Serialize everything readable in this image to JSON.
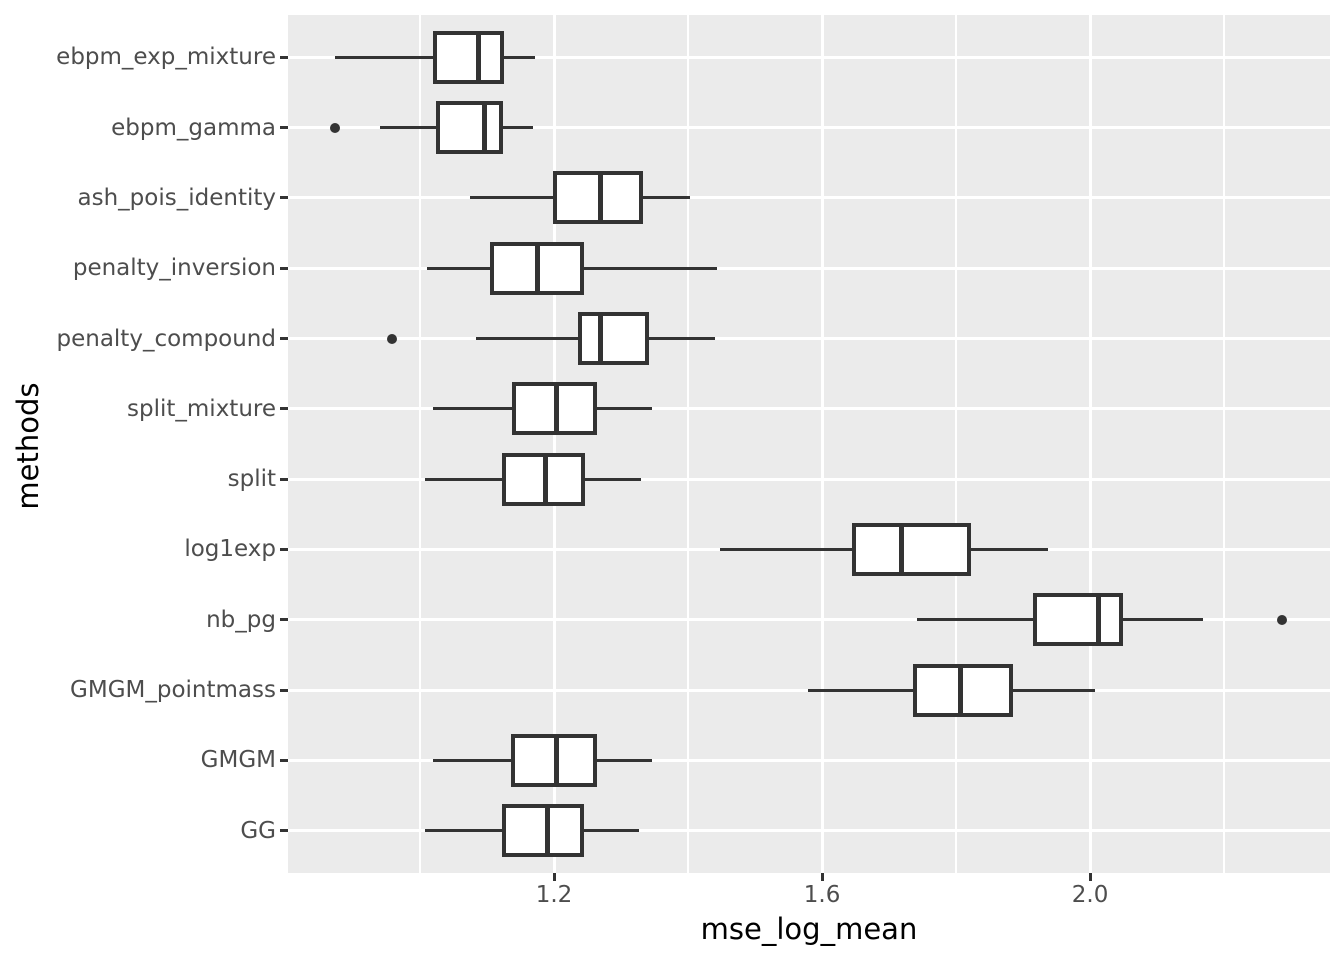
{
  "figure": {
    "x_axis_title": "mse_log_mean",
    "y_axis_title": "methods"
  },
  "chart_data": {
    "type": "boxplot",
    "orientation": "horizontal",
    "title": "",
    "xlabel": "mse_log_mean",
    "ylabel": "methods",
    "grid": "on",
    "legend": "none",
    "x_axis": {
      "range": [
        0.803,
        2.358
      ],
      "major_ticks": [
        1.2,
        1.6,
        2.0
      ],
      "tick_labels": [
        "1.2",
        "1.6",
        "2.0"
      ],
      "minor_gridlines": [
        1.0,
        1.4,
        1.8,
        2.2
      ]
    },
    "categories_top_to_bottom": [
      "ebpm_exp_mixture",
      "ebpm_gamma",
      "ash_pois_identity",
      "penalty_inversion",
      "penalty_compound",
      "split_mixture",
      "split",
      "log1exp",
      "nb_pg",
      "GMGM_pointmass",
      "GMGM",
      "GG"
    ],
    "series": [
      {
        "method": "ebpm_exp_mixture",
        "whisker_low": 0.873,
        "q1": 1.022,
        "median": 1.088,
        "q3": 1.122,
        "whisker_high": 1.172,
        "outliers": []
      },
      {
        "method": "ebpm_gamma",
        "whisker_low": 0.94,
        "q1": 1.027,
        "median": 1.096,
        "q3": 1.121,
        "whisker_high": 1.169,
        "outliers": [
          0.873
        ]
      },
      {
        "method": "ash_pois_identity",
        "whisker_low": 1.075,
        "q1": 1.201,
        "median": 1.269,
        "q3": 1.33,
        "whisker_high": 1.403,
        "outliers": []
      },
      {
        "method": "penalty_inversion",
        "whisker_low": 1.01,
        "q1": 1.107,
        "median": 1.175,
        "q3": 1.242,
        "whisker_high": 1.443,
        "outliers": []
      },
      {
        "method": "penalty_compound",
        "whisker_low": 1.084,
        "q1": 1.239,
        "median": 1.269,
        "q3": 1.339,
        "whisker_high": 1.44,
        "outliers": [
          0.958
        ]
      },
      {
        "method": "split_mixture",
        "whisker_low": 1.019,
        "q1": 1.14,
        "median": 1.203,
        "q3": 1.261,
        "whisker_high": 1.346,
        "outliers": []
      },
      {
        "method": "split",
        "whisker_low": 1.007,
        "q1": 1.125,
        "median": 1.188,
        "q3": 1.243,
        "whisker_high": 1.33,
        "outliers": []
      },
      {
        "method": "log1exp",
        "whisker_low": 1.448,
        "q1": 1.648,
        "median": 1.718,
        "q3": 1.819,
        "whisker_high": 1.937,
        "outliers": []
      },
      {
        "method": "nb_pg",
        "whisker_low": 1.742,
        "q1": 1.918,
        "median": 2.013,
        "q3": 2.046,
        "whisker_high": 2.169,
        "outliers": [
          2.287
        ]
      },
      {
        "method": "GMGM_pointmass",
        "whisker_low": 1.579,
        "q1": 1.739,
        "median": 1.806,
        "q3": 1.882,
        "whisker_high": 2.007,
        "outliers": []
      },
      {
        "method": "GMGM",
        "whisker_low": 1.019,
        "q1": 1.139,
        "median": 1.204,
        "q3": 1.261,
        "whisker_high": 1.346,
        "outliers": []
      },
      {
        "method": "GG",
        "whisker_low": 1.007,
        "q1": 1.125,
        "median": 1.191,
        "q3": 1.242,
        "whisker_high": 1.327,
        "outliers": []
      }
    ],
    "style": {
      "panel_background": "#EBEBEB",
      "gridline_color": "#FFFFFF",
      "box_fill": "#FFFFFF",
      "box_stroke": "#333333",
      "outlier_color": "#333333",
      "tick_mark_color": "#333333",
      "tick_label_color": "#4D4D4D",
      "axis_title_color": "#000000"
    }
  }
}
